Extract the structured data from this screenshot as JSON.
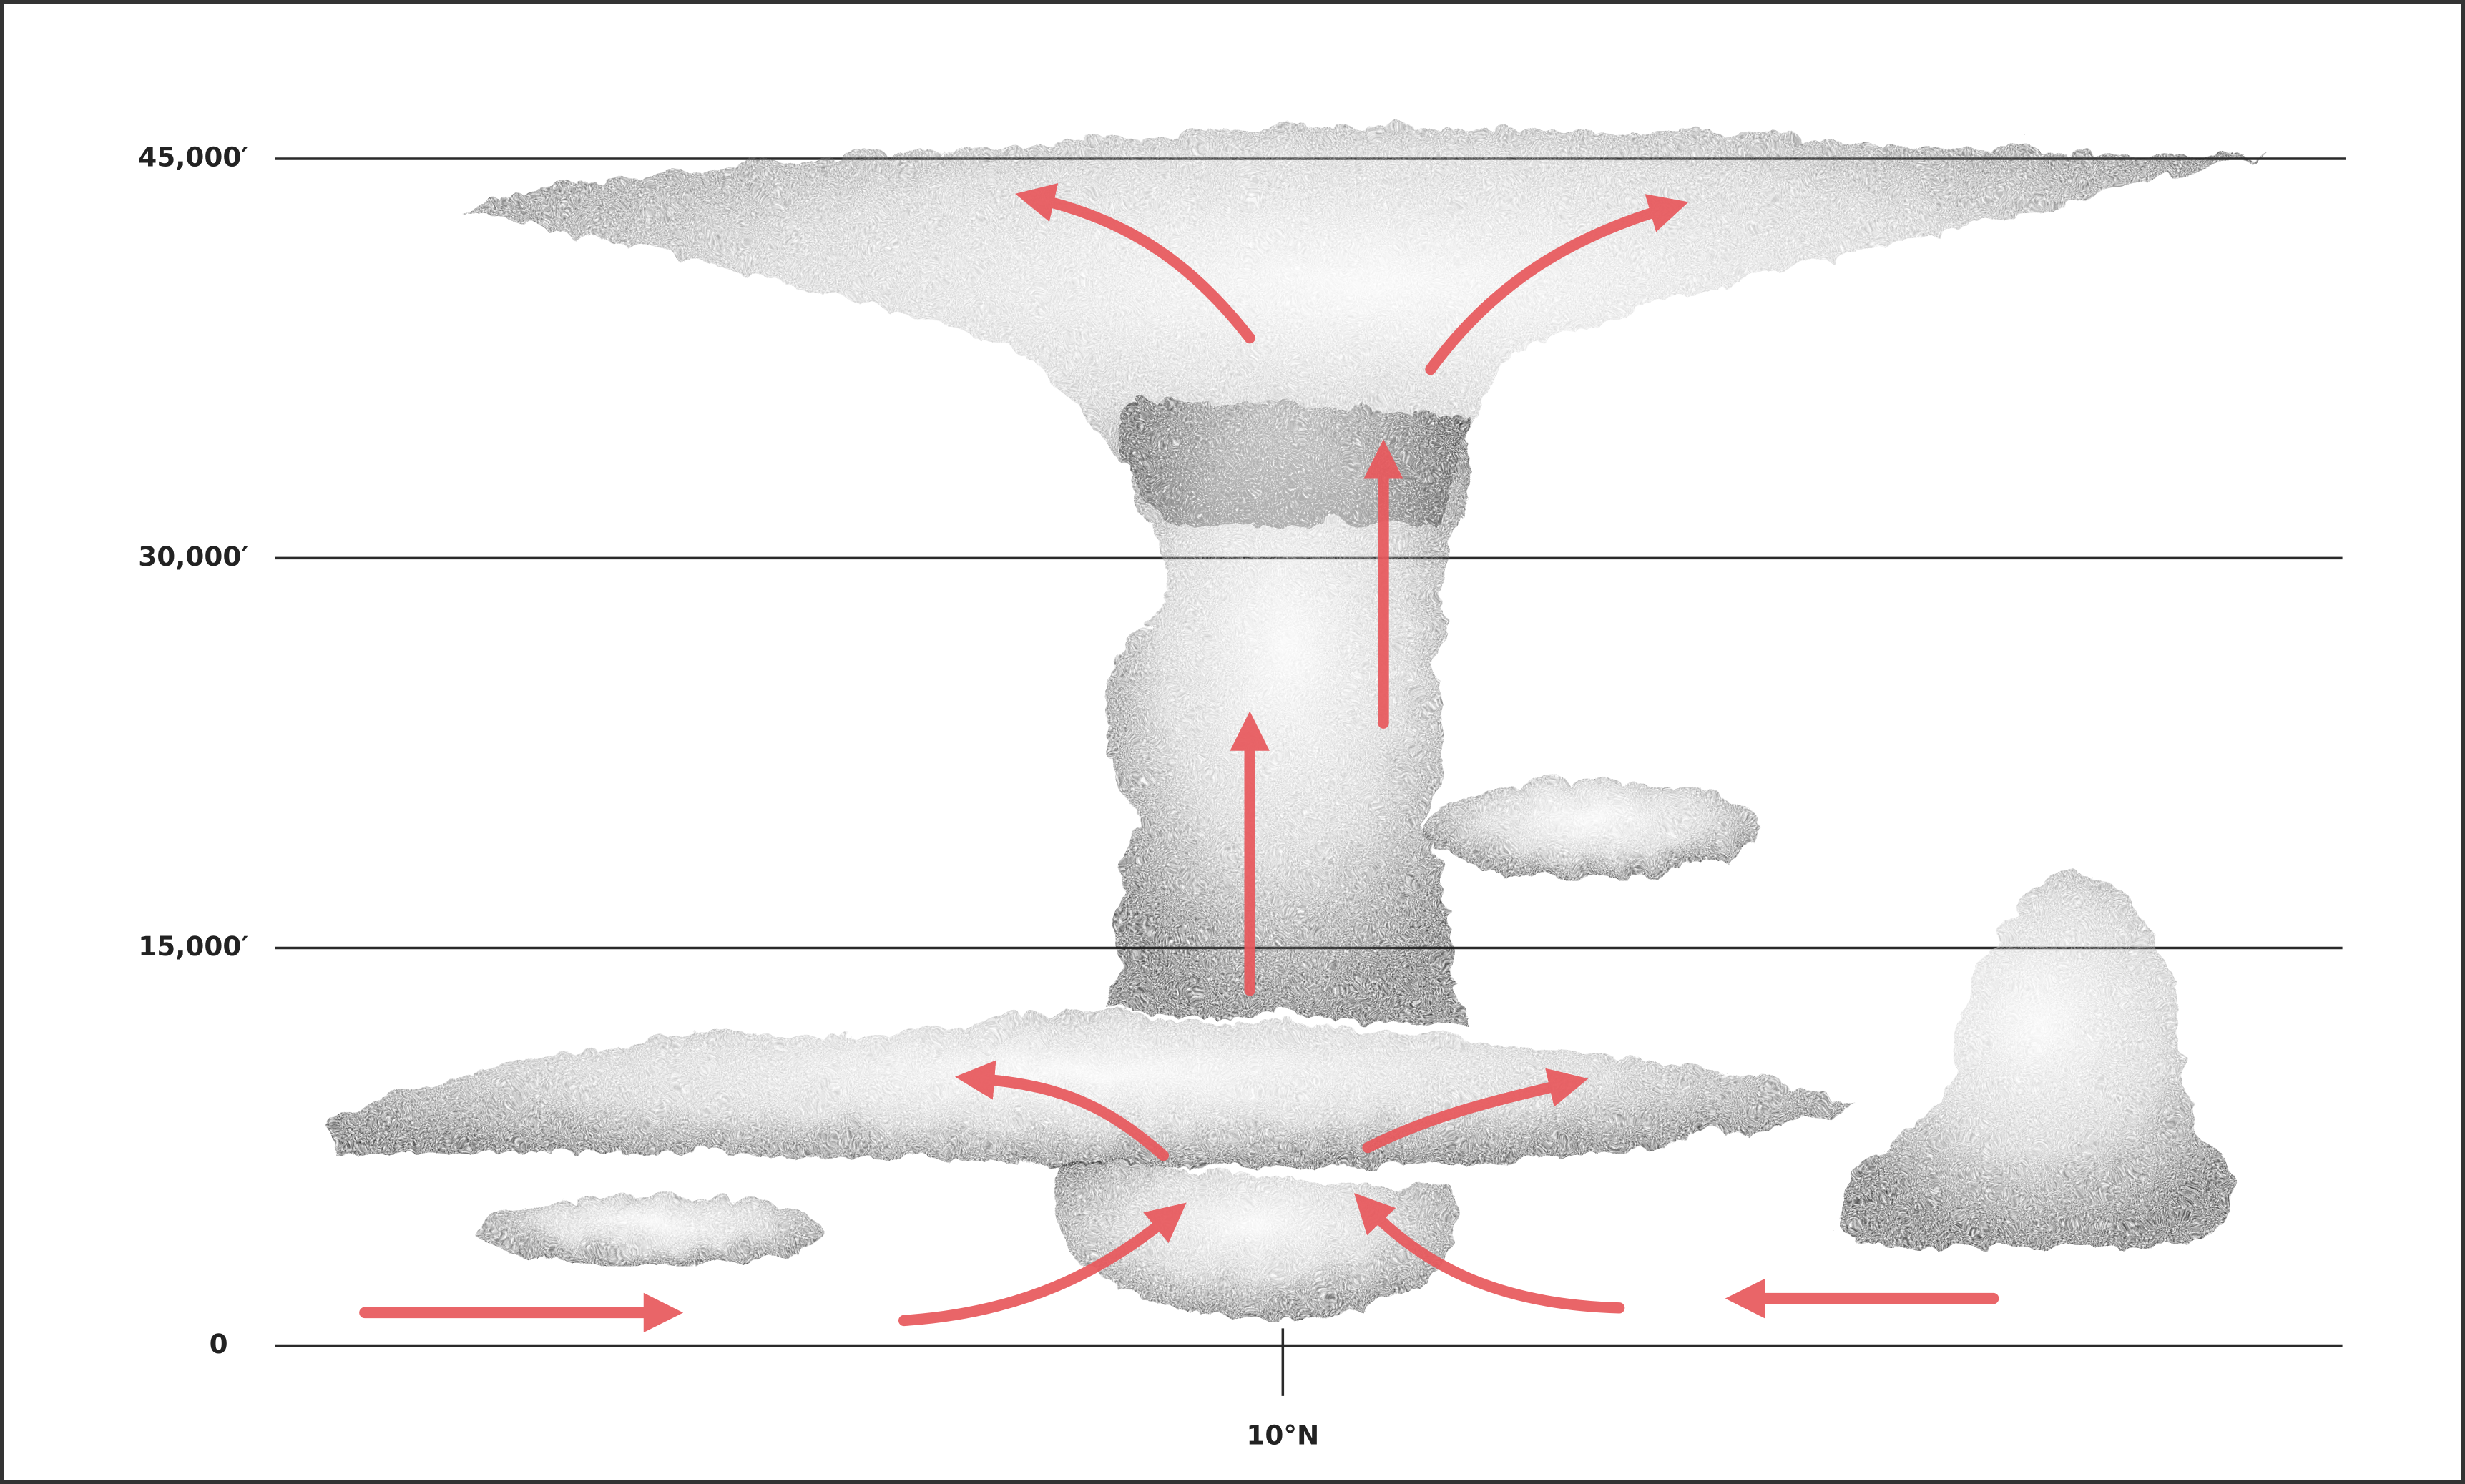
{
  "altitude_labels": [
    "45,000′",
    "30,000′",
    "15,000′",
    "0"
  ],
  "latitude_label": "10°N"
}
